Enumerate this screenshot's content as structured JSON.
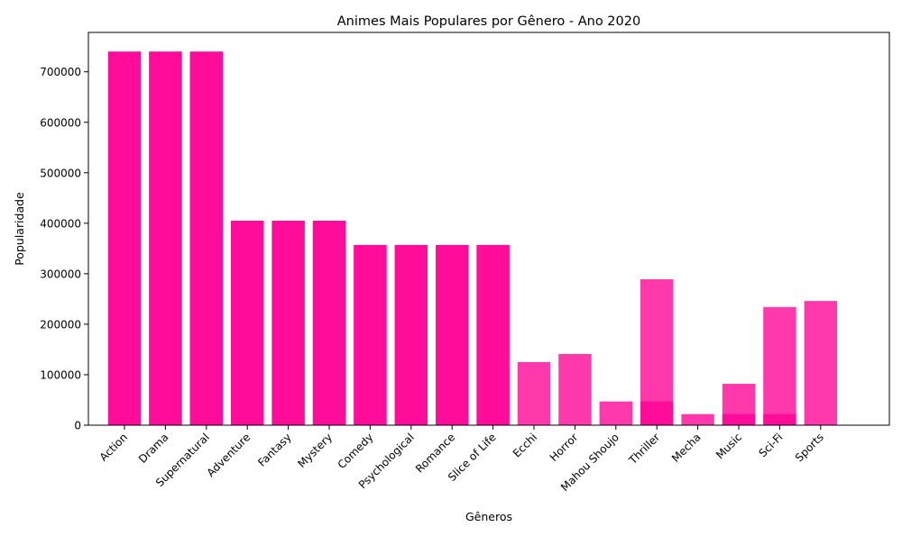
{
  "chart_data": {
    "type": "bar",
    "title": "Animes Mais Populares por Gênero - Ano 2020",
    "xlabel": "Gêneros",
    "ylabel": "Popularidade",
    "ylim": [
      0,
      778000
    ],
    "yticks": [
      0,
      100000,
      200000,
      300000,
      400000,
      500000,
      600000,
      700000
    ],
    "ytick_labels": [
      "0",
      "100000",
      "200000",
      "300000",
      "400000",
      "500000",
      "600000",
      "700000"
    ],
    "grid": false,
    "legend": "none",
    "bar_color": "#ff0095",
    "bar_opacity": 0.78,
    "categories": [
      "Action",
      "Drama",
      "Supernatural",
      "Adventure",
      "Fantasy",
      "Mystery",
      "Comedy",
      "Psychological",
      "Romance",
      "Slice of Life",
      "Ecchi",
      "Horror",
      "Mahou Shoujo",
      "Thriller",
      "Mecha",
      "Music",
      "Sci-Fi",
      "Sports"
    ],
    "series": [
      {
        "values": [
          740000,
          740000,
          740000,
          0,
          0,
          0,
          0,
          0,
          0,
          0,
          0,
          0,
          0,
          0,
          0,
          0,
          0,
          0
        ]
      },
      {
        "values": [
          740000,
          740000,
          740000,
          405000,
          405000,
          405000,
          0,
          0,
          0,
          0,
          0,
          0,
          0,
          0,
          0,
          0,
          0,
          0
        ]
      },
      {
        "values": [
          0,
          0,
          0,
          405000,
          405000,
          405000,
          357000,
          357000,
          357000,
          357000,
          0,
          0,
          0,
          0,
          0,
          0,
          0,
          0
        ]
      },
      {
        "values": [
          0,
          0,
          0,
          0,
          0,
          0,
          357000,
          357000,
          357000,
          357000,
          0,
          0,
          0,
          0,
          0,
          0,
          0,
          0
        ]
      },
      {
        "values": [
          0,
          0,
          0,
          0,
          0,
          0,
          0,
          0,
          0,
          0,
          125000,
          141000,
          0,
          0,
          0,
          0,
          0,
          0
        ]
      },
      {
        "values": [
          0,
          0,
          0,
          0,
          0,
          0,
          0,
          0,
          0,
          0,
          0,
          0,
          47000,
          47000,
          0,
          0,
          0,
          0
        ]
      },
      {
        "values": [
          0,
          0,
          0,
          0,
          0,
          0,
          0,
          0,
          0,
          0,
          0,
          0,
          0,
          289000,
          0,
          0,
          0,
          0
        ]
      },
      {
        "values": [
          0,
          0,
          0,
          0,
          0,
          0,
          0,
          0,
          0,
          0,
          0,
          0,
          0,
          0,
          22000,
          22000,
          22000,
          0
        ]
      },
      {
        "values": [
          0,
          0,
          0,
          0,
          0,
          0,
          0,
          0,
          0,
          0,
          0,
          0,
          0,
          0,
          0,
          82000,
          0,
          0
        ]
      },
      {
        "values": [
          0,
          0,
          0,
          0,
          0,
          0,
          0,
          0,
          0,
          0,
          0,
          0,
          0,
          0,
          0,
          0,
          234000,
          0
        ]
      },
      {
        "values": [
          0,
          0,
          0,
          0,
          0,
          0,
          0,
          0,
          0,
          0,
          0,
          0,
          0,
          0,
          0,
          0,
          0,
          246000
        ]
      }
    ]
  }
}
